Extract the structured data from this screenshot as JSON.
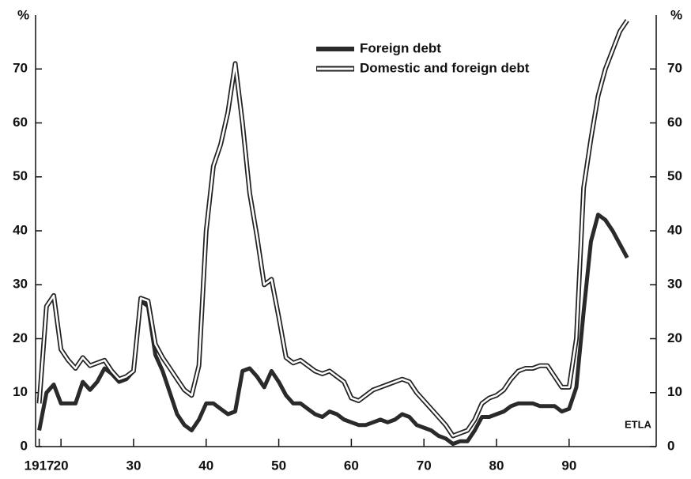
{
  "chart_data": {
    "type": "line",
    "y_label": "%",
    "y2_label": "%",
    "annotation": "ETLA",
    "x": [
      1917,
      1918,
      1919,
      1920,
      1921,
      1922,
      1923,
      1924,
      1925,
      1926,
      1927,
      1928,
      1929,
      1930,
      1931,
      1932,
      1933,
      1934,
      1935,
      1936,
      1937,
      1938,
      1939,
      1940,
      1941,
      1942,
      1943,
      1944,
      1945,
      1946,
      1947,
      1948,
      1949,
      1950,
      1951,
      1952,
      1953,
      1954,
      1955,
      1956,
      1957,
      1958,
      1959,
      1960,
      1961,
      1962,
      1963,
      1964,
      1965,
      1966,
      1967,
      1968,
      1969,
      1970,
      1971,
      1972,
      1973,
      1974,
      1975,
      1976,
      1977,
      1978,
      1979,
      1980,
      1981,
      1982,
      1983,
      1984,
      1985,
      1986,
      1987,
      1988,
      1989,
      1990,
      1991,
      1992,
      1993,
      1994,
      1995,
      1996,
      1997,
      1998
    ],
    "series": [
      {
        "name": "Foreign debt",
        "color": "#2a2a2a",
        "style": "solid",
        "values": [
          3,
          10,
          11.5,
          8,
          8,
          8,
          12,
          10.5,
          12,
          14.5,
          13.5,
          12,
          12.5,
          14,
          27,
          26,
          17,
          14,
          10,
          6,
          4,
          3,
          5,
          8,
          8,
          7,
          6,
          6.5,
          14,
          14.5,
          13,
          11,
          14,
          12,
          9.5,
          8,
          8,
          7,
          6,
          5.5,
          6.5,
          6,
          5,
          4.5,
          4,
          4,
          4.5,
          5,
          4.5,
          5,
          6,
          5.5,
          4,
          3.5,
          3,
          2,
          1.5,
          0.5,
          1,
          1,
          3,
          5.5,
          5.5,
          6,
          6.5,
          7.5,
          8,
          8,
          8,
          7.5,
          7.5,
          7.5,
          6.5,
          7,
          11,
          25,
          38,
          43,
          42,
          40,
          37.5,
          35
        ]
      },
      {
        "name": "Domestic and foreign debt",
        "color": "#ffffff",
        "style": "double",
        "values": [
          8,
          26,
          28,
          18,
          16,
          14.5,
          16.5,
          15,
          15.5,
          16,
          14,
          12.5,
          13,
          14,
          27.5,
          27,
          19,
          16.5,
          14.5,
          12.5,
          10.5,
          9.5,
          15,
          40,
          52,
          56,
          62,
          71,
          60,
          47,
          39,
          30,
          31,
          24,
          16.5,
          15.5,
          16,
          15,
          14,
          13.5,
          14,
          13,
          12,
          9,
          8.5,
          9.5,
          10.5,
          11,
          11.5,
          12,
          12.5,
          12,
          10,
          8.5,
          7,
          5.5,
          4,
          2,
          2.5,
          3,
          5,
          8,
          9,
          9.5,
          10.5,
          12.5,
          14,
          14.5,
          14.5,
          15,
          15,
          13,
          11,
          11,
          20,
          48,
          57,
          65,
          70,
          73.5,
          77,
          79
        ]
      }
    ],
    "xlim": [
      1916.5,
      2002
    ],
    "xticks": [
      1917,
      {
        "value": 1920,
        "label": "20"
      },
      {
        "value": 1930,
        "label": "30"
      },
      {
        "value": 1940,
        "label": "40"
      },
      {
        "value": 1950,
        "label": "50"
      },
      {
        "value": 1960,
        "label": "60"
      },
      {
        "value": 1970,
        "label": "70"
      },
      {
        "value": 1980,
        "label": "80"
      },
      {
        "value": 1990,
        "label": "90"
      }
    ],
    "ylim": [
      0,
      80
    ],
    "yticks": [
      0,
      10,
      20,
      30,
      40,
      50,
      60,
      70
    ],
    "y2lim": [
      0,
      80
    ],
    "y2ticks": [
      0,
      10,
      20,
      30,
      40,
      50,
      60,
      70
    ],
    "legend": "top"
  }
}
